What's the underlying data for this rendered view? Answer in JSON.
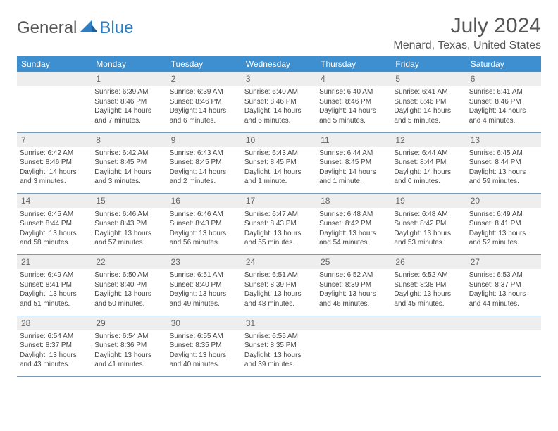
{
  "brand": {
    "general": "General",
    "blue": "Blue"
  },
  "title": "July 2024",
  "location": "Menard, Texas, United States",
  "colors": {
    "header_bg": "#3d8fcf",
    "header_text": "#ffffff",
    "daynum_bg": "#eeeeee",
    "row_border": "#7a99b5",
    "text": "#444444",
    "title_text": "#555555",
    "brand_blue": "#2f7dc0"
  },
  "weekdays": [
    "Sunday",
    "Monday",
    "Tuesday",
    "Wednesday",
    "Thursday",
    "Friday",
    "Saturday"
  ],
  "weeks": [
    {
      "nums": [
        "",
        "1",
        "2",
        "3",
        "4",
        "5",
        "6"
      ],
      "cells": [
        [],
        [
          "Sunrise: 6:39 AM",
          "Sunset: 8:46 PM",
          "Daylight: 14 hours",
          "and 7 minutes."
        ],
        [
          "Sunrise: 6:39 AM",
          "Sunset: 8:46 PM",
          "Daylight: 14 hours",
          "and 6 minutes."
        ],
        [
          "Sunrise: 6:40 AM",
          "Sunset: 8:46 PM",
          "Daylight: 14 hours",
          "and 6 minutes."
        ],
        [
          "Sunrise: 6:40 AM",
          "Sunset: 8:46 PM",
          "Daylight: 14 hours",
          "and 5 minutes."
        ],
        [
          "Sunrise: 6:41 AM",
          "Sunset: 8:46 PM",
          "Daylight: 14 hours",
          "and 5 minutes."
        ],
        [
          "Sunrise: 6:41 AM",
          "Sunset: 8:46 PM",
          "Daylight: 14 hours",
          "and 4 minutes."
        ]
      ]
    },
    {
      "nums": [
        "7",
        "8",
        "9",
        "10",
        "11",
        "12",
        "13"
      ],
      "cells": [
        [
          "Sunrise: 6:42 AM",
          "Sunset: 8:46 PM",
          "Daylight: 14 hours",
          "and 3 minutes."
        ],
        [
          "Sunrise: 6:42 AM",
          "Sunset: 8:45 PM",
          "Daylight: 14 hours",
          "and 3 minutes."
        ],
        [
          "Sunrise: 6:43 AM",
          "Sunset: 8:45 PM",
          "Daylight: 14 hours",
          "and 2 minutes."
        ],
        [
          "Sunrise: 6:43 AM",
          "Sunset: 8:45 PM",
          "Daylight: 14 hours",
          "and 1 minute."
        ],
        [
          "Sunrise: 6:44 AM",
          "Sunset: 8:45 PM",
          "Daylight: 14 hours",
          "and 1 minute."
        ],
        [
          "Sunrise: 6:44 AM",
          "Sunset: 8:44 PM",
          "Daylight: 14 hours",
          "and 0 minutes."
        ],
        [
          "Sunrise: 6:45 AM",
          "Sunset: 8:44 PM",
          "Daylight: 13 hours",
          "and 59 minutes."
        ]
      ]
    },
    {
      "nums": [
        "14",
        "15",
        "16",
        "17",
        "18",
        "19",
        "20"
      ],
      "cells": [
        [
          "Sunrise: 6:45 AM",
          "Sunset: 8:44 PM",
          "Daylight: 13 hours",
          "and 58 minutes."
        ],
        [
          "Sunrise: 6:46 AM",
          "Sunset: 8:43 PM",
          "Daylight: 13 hours",
          "and 57 minutes."
        ],
        [
          "Sunrise: 6:46 AM",
          "Sunset: 8:43 PM",
          "Daylight: 13 hours",
          "and 56 minutes."
        ],
        [
          "Sunrise: 6:47 AM",
          "Sunset: 8:43 PM",
          "Daylight: 13 hours",
          "and 55 minutes."
        ],
        [
          "Sunrise: 6:48 AM",
          "Sunset: 8:42 PM",
          "Daylight: 13 hours",
          "and 54 minutes."
        ],
        [
          "Sunrise: 6:48 AM",
          "Sunset: 8:42 PM",
          "Daylight: 13 hours",
          "and 53 minutes."
        ],
        [
          "Sunrise: 6:49 AM",
          "Sunset: 8:41 PM",
          "Daylight: 13 hours",
          "and 52 minutes."
        ]
      ]
    },
    {
      "nums": [
        "21",
        "22",
        "23",
        "24",
        "25",
        "26",
        "27"
      ],
      "cells": [
        [
          "Sunrise: 6:49 AM",
          "Sunset: 8:41 PM",
          "Daylight: 13 hours",
          "and 51 minutes."
        ],
        [
          "Sunrise: 6:50 AM",
          "Sunset: 8:40 PM",
          "Daylight: 13 hours",
          "and 50 minutes."
        ],
        [
          "Sunrise: 6:51 AM",
          "Sunset: 8:40 PM",
          "Daylight: 13 hours",
          "and 49 minutes."
        ],
        [
          "Sunrise: 6:51 AM",
          "Sunset: 8:39 PM",
          "Daylight: 13 hours",
          "and 48 minutes."
        ],
        [
          "Sunrise: 6:52 AM",
          "Sunset: 8:39 PM",
          "Daylight: 13 hours",
          "and 46 minutes."
        ],
        [
          "Sunrise: 6:52 AM",
          "Sunset: 8:38 PM",
          "Daylight: 13 hours",
          "and 45 minutes."
        ],
        [
          "Sunrise: 6:53 AM",
          "Sunset: 8:37 PM",
          "Daylight: 13 hours",
          "and 44 minutes."
        ]
      ]
    },
    {
      "nums": [
        "28",
        "29",
        "30",
        "31",
        "",
        "",
        ""
      ],
      "cells": [
        [
          "Sunrise: 6:54 AM",
          "Sunset: 8:37 PM",
          "Daylight: 13 hours",
          "and 43 minutes."
        ],
        [
          "Sunrise: 6:54 AM",
          "Sunset: 8:36 PM",
          "Daylight: 13 hours",
          "and 41 minutes."
        ],
        [
          "Sunrise: 6:55 AM",
          "Sunset: 8:35 PM",
          "Daylight: 13 hours",
          "and 40 minutes."
        ],
        [
          "Sunrise: 6:55 AM",
          "Sunset: 8:35 PM",
          "Daylight: 13 hours",
          "and 39 minutes."
        ],
        [],
        [],
        []
      ]
    }
  ]
}
